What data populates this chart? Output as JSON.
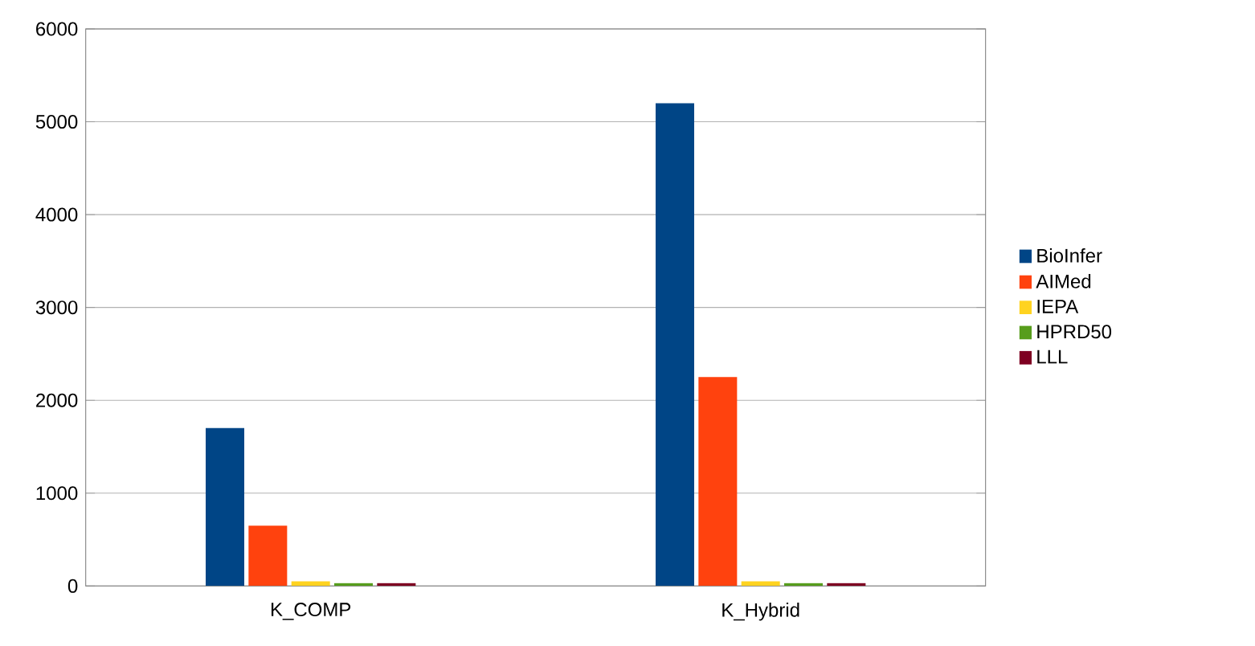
{
  "chart_data": {
    "type": "bar",
    "categories": [
      "K_COMP",
      "K_Hybrid"
    ],
    "series": [
      {
        "name": "BioInfer",
        "color": "#004586",
        "values": [
          1700,
          5200
        ]
      },
      {
        "name": "AIMed",
        "color": "#ff420e",
        "values": [
          650,
          2250
        ]
      },
      {
        "name": "IEPA",
        "color": "#ffd320",
        "values": [
          50,
          50
        ]
      },
      {
        "name": "HPRD50",
        "color": "#579d1c",
        "values": [
          30,
          30
        ]
      },
      {
        "name": "LLL",
        "color": "#7e0021",
        "values": [
          30,
          30
        ]
      }
    ],
    "ylim": [
      0,
      6000
    ],
    "yticks": [
      0,
      1000,
      2000,
      3000,
      4000,
      5000,
      6000
    ],
    "grid": "y",
    "legend": "right"
  }
}
